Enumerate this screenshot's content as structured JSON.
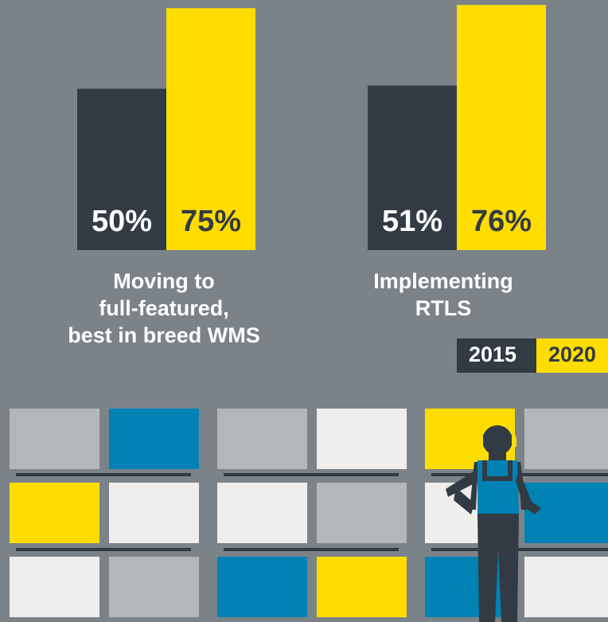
{
  "chart_data": {
    "type": "bar",
    "categories": [
      "Moving to\nfull-featured,\nbest in breed WMS",
      "Implementing RTLS"
    ],
    "series": [
      {
        "name": "2015",
        "color": "#323b44",
        "values": [
          50,
          51
        ],
        "value_labels": [
          "50%",
          "51%"
        ]
      },
      {
        "name": "2020",
        "color": "#ffdd00",
        "values": [
          75,
          76
        ],
        "value_labels": [
          "75%",
          "76%"
        ]
      }
    ]
  }
}
